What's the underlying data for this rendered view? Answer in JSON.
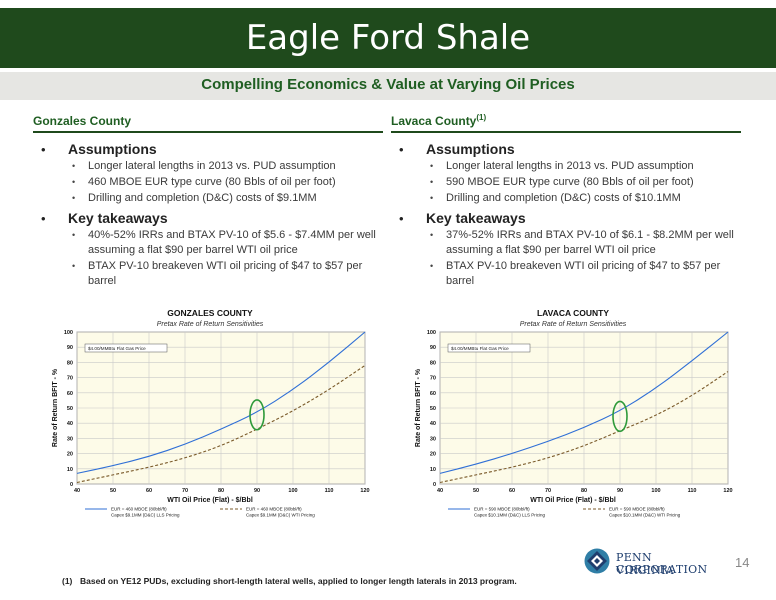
{
  "header": {
    "title": "Eagle Ford Shale",
    "subtitle": "Compelling Economics & Value at Varying Oil Prices"
  },
  "columns": [
    {
      "county": "Gonzales County",
      "county_sup": "",
      "sections": [
        {
          "heading": "Assumptions",
          "items": [
            "Longer lateral lengths in 2013 vs. PUD assumption",
            "460 MBOE EUR type curve (80 Bbls of oil per foot)",
            "Drilling and completion (D&C) costs of $9.1MM"
          ]
        },
        {
          "heading": "Key takeaways",
          "items": [
            "40%-52% IRRs and BTAX PV-10 of $5.6 - $7.4MM per well assuming a flat $90 per barrel WTI oil price",
            "BTAX PV-10 breakeven WTI oil pricing of $47 to $57 per barrel"
          ]
        }
      ]
    },
    {
      "county": "Lavaca County",
      "county_sup": "(1)",
      "sections": [
        {
          "heading": "Assumptions",
          "items": [
            "Longer lateral lengths in 2013 vs. PUD assumption",
            "590 MBOE EUR type curve (80 Bbls of oil per foot)",
            "Drilling and completion (D&C) costs of $10.1MM"
          ]
        },
        {
          "heading": "Key takeaways",
          "items": [
            "37%-52% IRRs and BTAX PV-10 of $6.1 - $8.2MM per well assuming a flat $90 per barrel WTI oil price",
            "BTAX PV-10 breakeven WTI oil pricing of $47 to $57 per barrel"
          ]
        }
      ]
    }
  ],
  "chart_data": [
    {
      "type": "line",
      "title": "GONZALES COUNTY",
      "subtitle": "Pretax Rate of Return Sensitivities",
      "xlabel": "WTI Oil Price (Flat) - $/Bbl",
      "ylabel": "Rate of Return BFIT - %",
      "xlim": [
        40,
        120
      ],
      "ylim": [
        0,
        100
      ],
      "x_ticks": [
        40,
        50,
        60,
        70,
        80,
        90,
        100,
        110,
        120
      ],
      "y_ticks": [
        0,
        10,
        20,
        30,
        40,
        50,
        60,
        70,
        80,
        90,
        100
      ],
      "annotation": "$4.00/MMBtu Flat Gas Price",
      "grid": true,
      "legend_position": "bottom",
      "highlight": {
        "x": 90,
        "y_range": [
          37,
          54
        ]
      },
      "series": [
        {
          "name": "EUR = 460 MBOE (80bbl/ft) · Capex $9.1MM (D&C) LLS Pricing",
          "style": "solid",
          "color": "#2f6fd6",
          "x": [
            40,
            50,
            60,
            70,
            80,
            90,
            100,
            110,
            120
          ],
          "y": [
            7,
            12,
            18,
            26,
            36,
            47,
            62,
            80,
            100
          ]
        },
        {
          "name": "EUR = 460 MBOE (80bbl/ft) · Capex $9.1MM (D&C) WTI Pricing",
          "style": "dashed",
          "color": "#7a5a2a",
          "x": [
            40,
            50,
            60,
            70,
            80,
            90,
            100,
            110,
            120
          ],
          "y": [
            1,
            6,
            11,
            17,
            25,
            36,
            48,
            62,
            78
          ]
        }
      ]
    },
    {
      "type": "line",
      "title": "LAVACA COUNTY",
      "subtitle": "Pretax Rate of Return Sensitivities",
      "xlabel": "WTI Oil Price (Flat) - $/Bbl",
      "ylabel": "Rate of Return BFIT - %",
      "xlim": [
        40,
        120
      ],
      "ylim": [
        0,
        100
      ],
      "x_ticks": [
        40,
        50,
        60,
        70,
        80,
        90,
        100,
        110,
        120
      ],
      "y_ticks": [
        0,
        10,
        20,
        30,
        40,
        50,
        60,
        70,
        80,
        90,
        100
      ],
      "annotation": "$4.00/MMBtu Flat Gas Price",
      "grid": true,
      "legend_position": "bottom",
      "highlight": {
        "x": 90,
        "y_range": [
          36,
          53
        ]
      },
      "series": [
        {
          "name": "EUR = 590 MBOE (80bbl/ft) · Capex $10.1MM (D&C) LLS Pricing",
          "style": "solid",
          "color": "#2f6fd6",
          "x": [
            40,
            50,
            60,
            70,
            80,
            90,
            100,
            110,
            120
          ],
          "y": [
            7,
            13,
            20,
            28,
            37,
            48,
            63,
            81,
            100
          ]
        },
        {
          "name": "EUR = 590 MBOE (80bbl/ft) · Capex $10.1MM (D&C) WTI Pricing",
          "style": "dashed",
          "color": "#7a5a2a",
          "x": [
            40,
            50,
            60,
            70,
            80,
            90,
            100,
            110,
            120
          ],
          "y": [
            1,
            6,
            11,
            17,
            25,
            35,
            45,
            58,
            74
          ]
        }
      ]
    }
  ],
  "footnote": {
    "mark": "(1)",
    "text": "Based on YE12 PUDs, excluding short-length lateral wells, applied to longer length laterals in 2013 program."
  },
  "logo": {
    "line1": "PENN VIRGINIA",
    "line2": "CORPORATION"
  },
  "page_number": "14",
  "colors": {
    "title_bar": "#1f4a1c",
    "accent_text": "#1f5e22",
    "highlight_ellipse": "#2e9a3a",
    "plot_bg": "#fdfbe8"
  }
}
